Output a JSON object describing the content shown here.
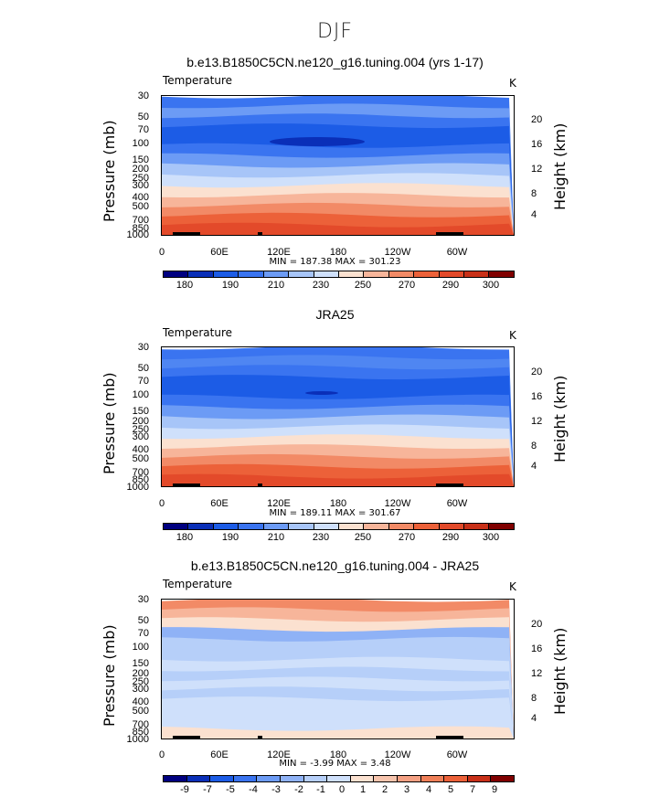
{
  "page_title": "DJF",
  "chart_data": [
    {
      "type": "heatmap",
      "title": "b.e13.B1850C5CN.ne120_g16.tuning.004 (yrs 1-17)",
      "variable": "Temperature",
      "units": "K",
      "ylabel": "Pressure (mb)",
      "ylabel_right": "Height (km)",
      "pressure_ticks": [
        "30",
        "50",
        "70",
        "100",
        "150",
        "200",
        "250",
        "300",
        "400",
        "500",
        "700",
        "850",
        "1000"
      ],
      "height_ticks": [
        "20",
        "16",
        "12",
        "8",
        "4"
      ],
      "lon_ticks": [
        "0",
        "60E",
        "120E",
        "180",
        "120W",
        "60W"
      ],
      "min_max": "MIN = 187.38   MAX = 301.23",
      "colorbar_labels": [
        "180",
        "190",
        "210",
        "230",
        "250",
        "270",
        "290",
        "300"
      ],
      "profile_colors": [
        "#3a74f0",
        "#6c9bf5",
        "#3a74f0",
        "#1c5ce6",
        "#1c5ce6",
        "#3a74f0",
        "#6c9bf5",
        "#a7c5f8",
        "#cfe0fb",
        "#fbe1d0",
        "#f7b59a",
        "#f28a66",
        "#ec6139",
        "#e34a2a"
      ]
    },
    {
      "type": "heatmap",
      "title": "JRA25",
      "variable": "Temperature",
      "units": "K",
      "ylabel": "Pressure (mb)",
      "ylabel_right": "Height (km)",
      "pressure_ticks": [
        "30",
        "50",
        "70",
        "100",
        "150",
        "200",
        "250",
        "300",
        "400",
        "500",
        "700",
        "850",
        "1000"
      ],
      "height_ticks": [
        "20",
        "16",
        "12",
        "8",
        "4"
      ],
      "lon_ticks": [
        "0",
        "60E",
        "120E",
        "180",
        "120W",
        "60W"
      ],
      "min_max": "MIN = 189.11   MAX = 301.67",
      "colorbar_labels": [
        "180",
        "190",
        "210",
        "230",
        "250",
        "270",
        "290",
        "300"
      ],
      "profile_colors": [
        "#3a74f0",
        "#4f86f2",
        "#3a74f0",
        "#1c5ce6",
        "#1c5ce6",
        "#3a74f0",
        "#6c9bf5",
        "#a7c5f8",
        "#cfe0fb",
        "#fbe1d0",
        "#f7b59a",
        "#f28a66",
        "#ec6139",
        "#e34a2a"
      ]
    },
    {
      "type": "heatmap",
      "title": "b.e13.B1850C5CN.ne120_g16.tuning.004 - JRA25",
      "variable": "Temperature",
      "units": "K",
      "ylabel": "Pressure (mb)",
      "ylabel_right": "Height (km)",
      "pressure_ticks": [
        "30",
        "50",
        "70",
        "100",
        "150",
        "200",
        "250",
        "300",
        "400",
        "500",
        "700",
        "850",
        "1000"
      ],
      "height_ticks": [
        "20",
        "16",
        "12",
        "8",
        "4"
      ],
      "lon_ticks": [
        "0",
        "60E",
        "120E",
        "180",
        "120W",
        "60W"
      ],
      "min_max": "MIN =  -3.99   MAX =   3.48",
      "colorbar_labels": [
        "-9",
        "-7",
        "-5",
        "-4",
        "-3",
        "-2",
        "-1",
        "0",
        "1",
        "2",
        "3",
        "4",
        "5",
        "7",
        "9"
      ],
      "profile_colors": [
        "#f28a66",
        "#f7b59a",
        "#fbe1d0",
        "#8fb2f6",
        "#b6cff9",
        "#b6cff9",
        "#cfe0fb",
        "#b6cff9",
        "#cfe0fb",
        "#b6cff9",
        "#cfe0fb",
        "#cfe0fb",
        "#cfe0fb",
        "#fbe1d0"
      ]
    }
  ],
  "colorbar_colors": {
    "temperature": [
      "#000080",
      "#0a2fb8",
      "#1c5ce6",
      "#3a74f0",
      "#6c9bf5",
      "#a7c5f8",
      "#cfe0fb",
      "#fbe1d0",
      "#f7b59a",
      "#f28a66",
      "#ec6139",
      "#e34a2a",
      "#c83018",
      "#800000"
    ],
    "difference": [
      "#000080",
      "#0a2fb8",
      "#1c5ce6",
      "#3a74f0",
      "#6c9bf5",
      "#8fb2f6",
      "#b6cff9",
      "#cfe0fb",
      "#fbe1d0",
      "#f7c4ad",
      "#f4a083",
      "#ef7f58",
      "#ec6139",
      "#c83018",
      "#800000"
    ]
  }
}
